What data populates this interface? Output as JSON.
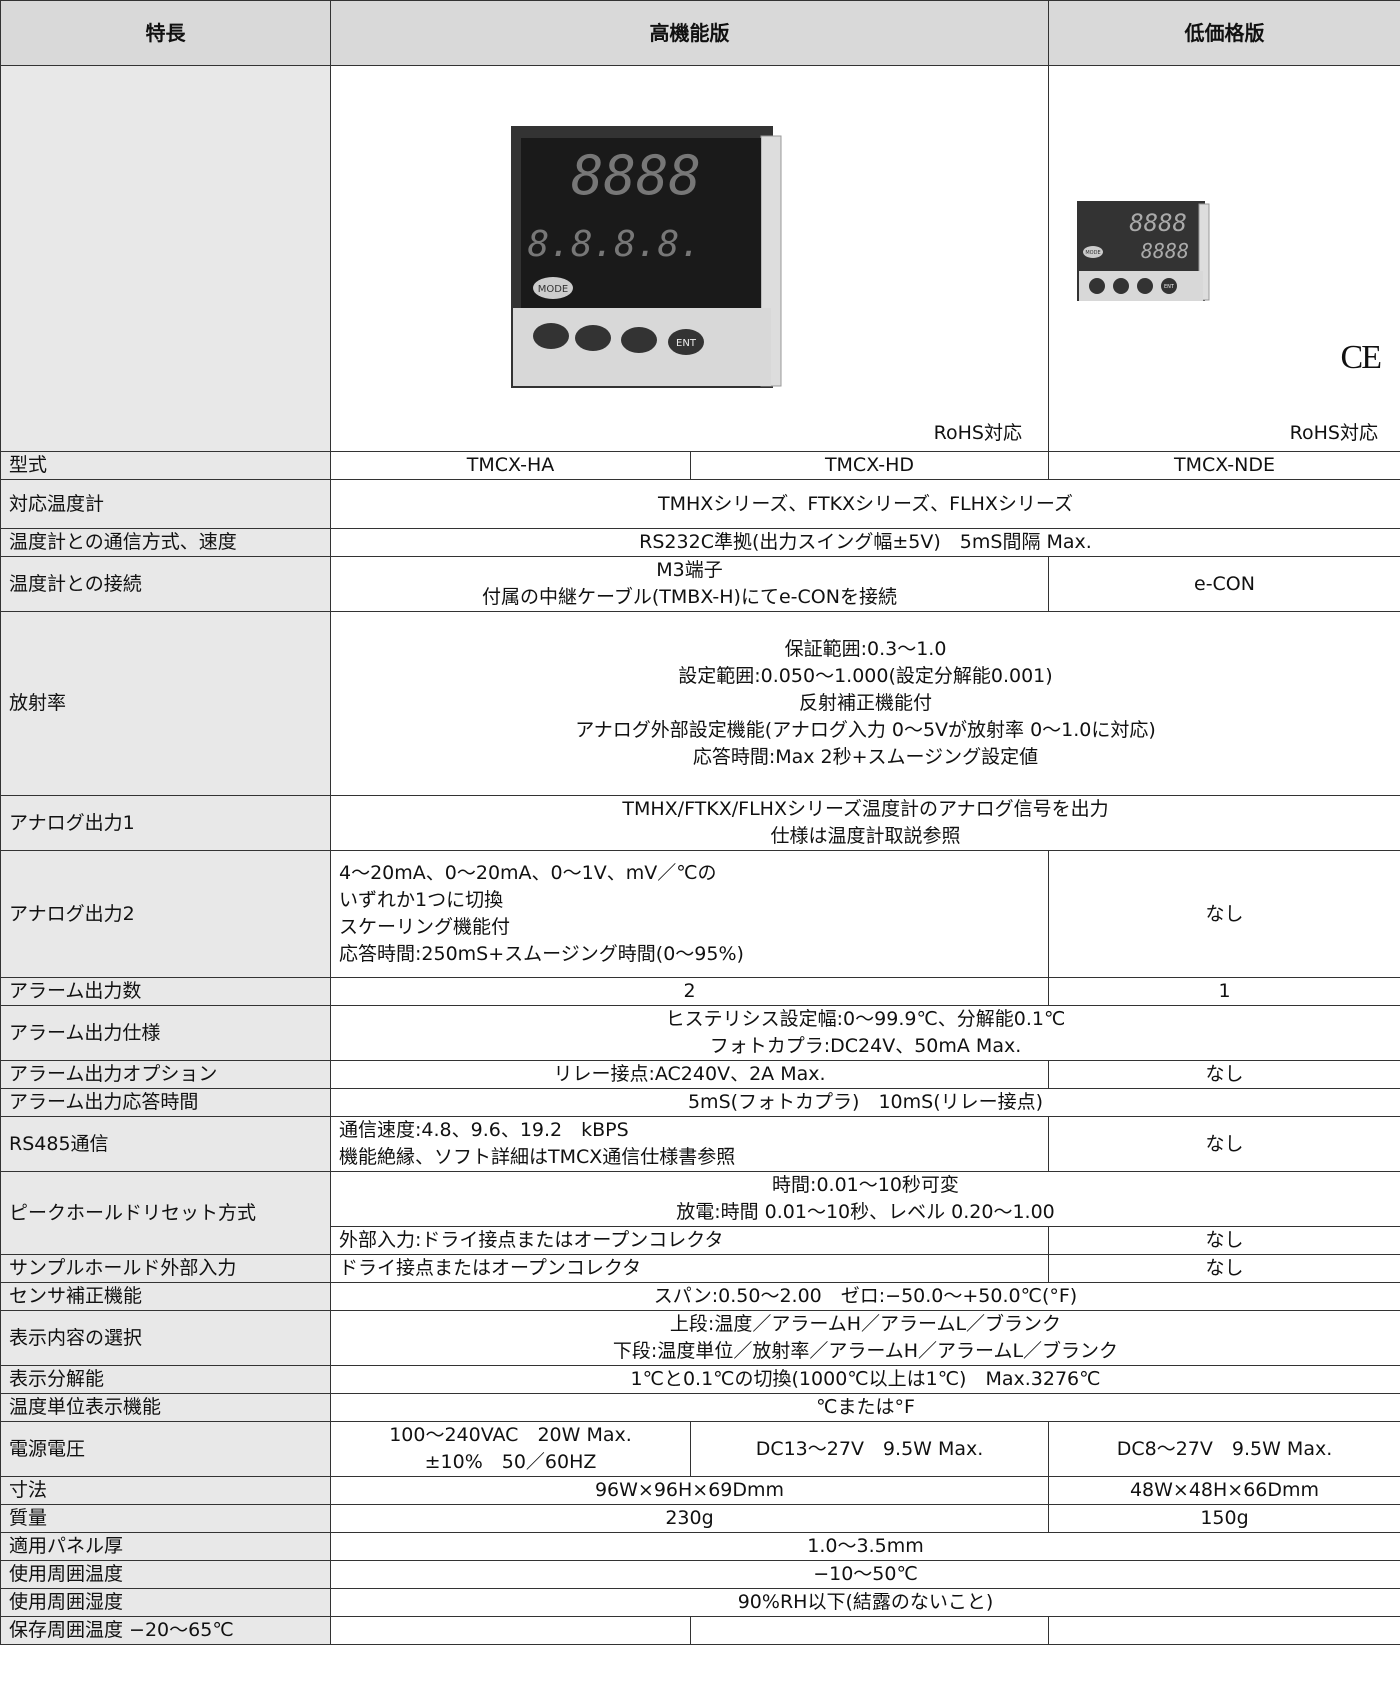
{
  "header": [
    "特長",
    "高機能版",
    "低価格版"
  ],
  "images": {
    "high": {
      "display_top": "8888",
      "display_bottom": "8.8.8.8.",
      "mode_button": "MODE",
      "enter_button": "ENT",
      "note": "RoHS対応"
    },
    "low": {
      "display_top": "8888",
      "display_bottom": "8888",
      "mode_button": "MODE",
      "enter_button": "ENT",
      "ce_mark": "CE",
      "note": "RoHS対応"
    }
  },
  "rows": [
    [
      "型式",
      "TMCX-HA",
      "TMCX-HD",
      "TMCX-NDE"
    ],
    [
      "対応温度計",
      "TMHXシリーズ、FTKXシリーズ、FLHXシリーズ"
    ],
    [
      "温度計との通信方式、速度",
      "RS232C準拠(出力スイング幅±5V)　5mS間隔 Max."
    ],
    [
      "温度計との接続",
      "M3端子\n付属の中継ケーブル(TMBX-H)にてe-CONを接続",
      "e-CON"
    ],
    [
      "放射率",
      "保証範囲:0.3〜1.0\n設定範囲:0.050〜1.000(設定分解能0.001)\n反射補正機能付\nアナログ外部設定機能(アナログ入力 0〜5Vが放射率 0〜1.0に対応)\n応答時間:Max 2秒+スムージング設定値"
    ],
    [
      "アナログ出力1",
      "TMHX/FTKX/FLHXシリーズ温度計のアナログ信号を出力\n仕様は温度計取説参照"
    ],
    [
      "アナログ出力2",
      "4〜20mA、0〜20mA、0〜1V、mV／℃の\nいずれか1つに切換\nスケーリング機能付\n応答時間:250mS+スムージング時間(0〜95%)",
      "なし"
    ],
    [
      "アラーム出力数",
      "2",
      "1"
    ],
    [
      "アラーム出力仕様",
      "ヒステリシス設定幅:0〜99.9℃、分解能0.1℃\nフォトカプラ:DC24V、50mA Max."
    ],
    [
      "アラーム出力オプション",
      "リレー接点:AC240V、2A Max.",
      "なし"
    ],
    [
      "アラーム出力応答時間",
      "5mS(フォトカプラ)　10mS(リレー接点)"
    ],
    [
      "RS485通信",
      "通信速度:4.8、9.6、19.2　kBPS\n機能絶縁、ソフト詳細はTMCX通信仕様書参照",
      "なし"
    ],
    [
      "ピークホールドリセット方式",
      "時間:0.01〜10秒可変\n放電:時間 0.01〜10秒、レベル 0.20〜1.00",
      "外部入力:ドライ接点またはオープンコレクタ",
      "なし"
    ],
    [
      "サンプルホールド外部入力",
      "ドライ接点またはオープンコレクタ",
      "なし"
    ],
    [
      "センサ補正機能",
      "スパン:0.50〜2.00　ゼロ:−50.0〜+50.0℃(°F)"
    ],
    [
      "表示内容の選択",
      "上段:温度／アラームH／アラームL／ブランク\n下段:温度単位／放射率／アラームH／アラームL／ブランク"
    ],
    [
      "表示分解能",
      "1℃と0.1℃の切換(1000℃以上は1℃)　Max.3276℃"
    ],
    [
      "温度単位表示機能",
      "℃または°F"
    ],
    [
      "電源電圧",
      "100〜240VAC　20W Max.\n±10%　50／60HZ",
      "DC13〜27V　9.5W Max.",
      "DC8〜27V　9.5W Max."
    ],
    [
      "寸法",
      "96W×96H×69Dmm",
      "48W×48H×66Dmm"
    ],
    [
      "質量",
      "230g",
      "150g"
    ],
    [
      "適用パネル厚",
      "1.0〜3.5mm"
    ],
    [
      "使用周囲温度",
      "−10〜50℃"
    ],
    [
      "使用周囲湿度",
      "90%RH以下(結露のないこと)"
    ],
    [
      "保存周囲温度 −20〜65℃"
    ]
  ]
}
